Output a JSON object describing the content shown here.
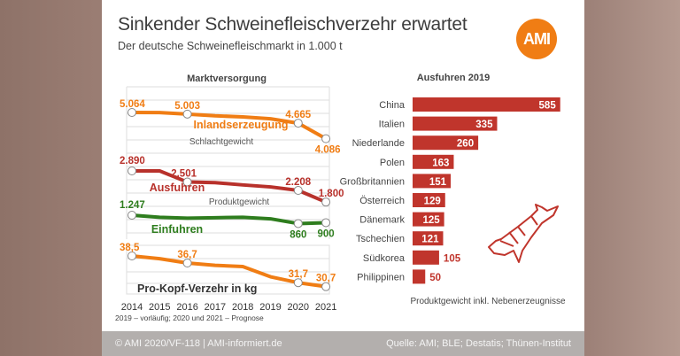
{
  "title": "Sinkender Schweinefleischverzehr erwartet",
  "subtitle": "Der deutsche Schweinefleischmarkt in 1.000 t",
  "logo": "AMI",
  "footer": {
    "left": "© AMI 2020/VF-118 | AMI-informiert.de",
    "right": "Quelle: AMI; BLE; Destatis; Thünen-Institut"
  },
  "colors": {
    "orange": "#f07d14",
    "red": "#b8312b",
    "green": "#2e7d1e",
    "bar": "#c0352c"
  },
  "chart_data": [
    {
      "type": "line",
      "title": "Marktversorgung",
      "x": [
        2014,
        2015,
        2016,
        2017,
        2018,
        2019,
        2020,
        2021
      ],
      "note": "2019 – vorläufig; 2020 und 2021 – Prognose",
      "series": [
        {
          "name": "Inlandserzeugung",
          "sublabel": "Schlachtgewicht",
          "color": "#f07d14",
          "values": [
            5064,
            5060,
            5003,
            4940,
            4900,
            4830,
            4665,
            4086
          ],
          "labels": {
            "2014": "5.064",
            "2016": "5.003",
            "2020": "4.665",
            "2021": "4.086"
          }
        },
        {
          "name": "Ausfuhren",
          "sublabel": "Produktgewicht",
          "color": "#b8312b",
          "values": [
            2890,
            2890,
            2501,
            2480,
            2400,
            2330,
            2208,
            1800
          ],
          "labels": {
            "2014": "2.890",
            "2016": "2.501",
            "2020": "2.208",
            "2021": "1.800"
          }
        },
        {
          "name": "Einfuhren",
          "color": "#2e7d1e",
          "values": [
            1247,
            1150,
            1110,
            1130,
            1150,
            1080,
            860,
            900
          ],
          "labels": {
            "2014": "1.247",
            "2020": "860",
            "2021": "900"
          }
        },
        {
          "name": "Pro-Kopf-Verzehr in kg",
          "color": "#f07d14",
          "values": [
            38.5,
            37.8,
            36.7,
            36.1,
            35.8,
            33.2,
            31.7,
            30.7
          ],
          "labels": {
            "2014": "38,5",
            "2016": "36,7",
            "2020": "31,7",
            "2021": "30,7"
          }
        }
      ]
    },
    {
      "type": "bar",
      "title": "Ausfuhren 2019",
      "note": "Produktgewicht inkl. Nebenerzeugnisse",
      "categories": [
        "China",
        "Italien",
        "Niederlande",
        "Polen",
        "Großbritannien",
        "Österreich",
        "Dänemark",
        "Tschechien",
        "Südkorea",
        "Philippinen"
      ],
      "values": [
        585,
        335,
        260,
        163,
        151,
        129,
        125,
        121,
        105,
        50
      ]
    }
  ]
}
